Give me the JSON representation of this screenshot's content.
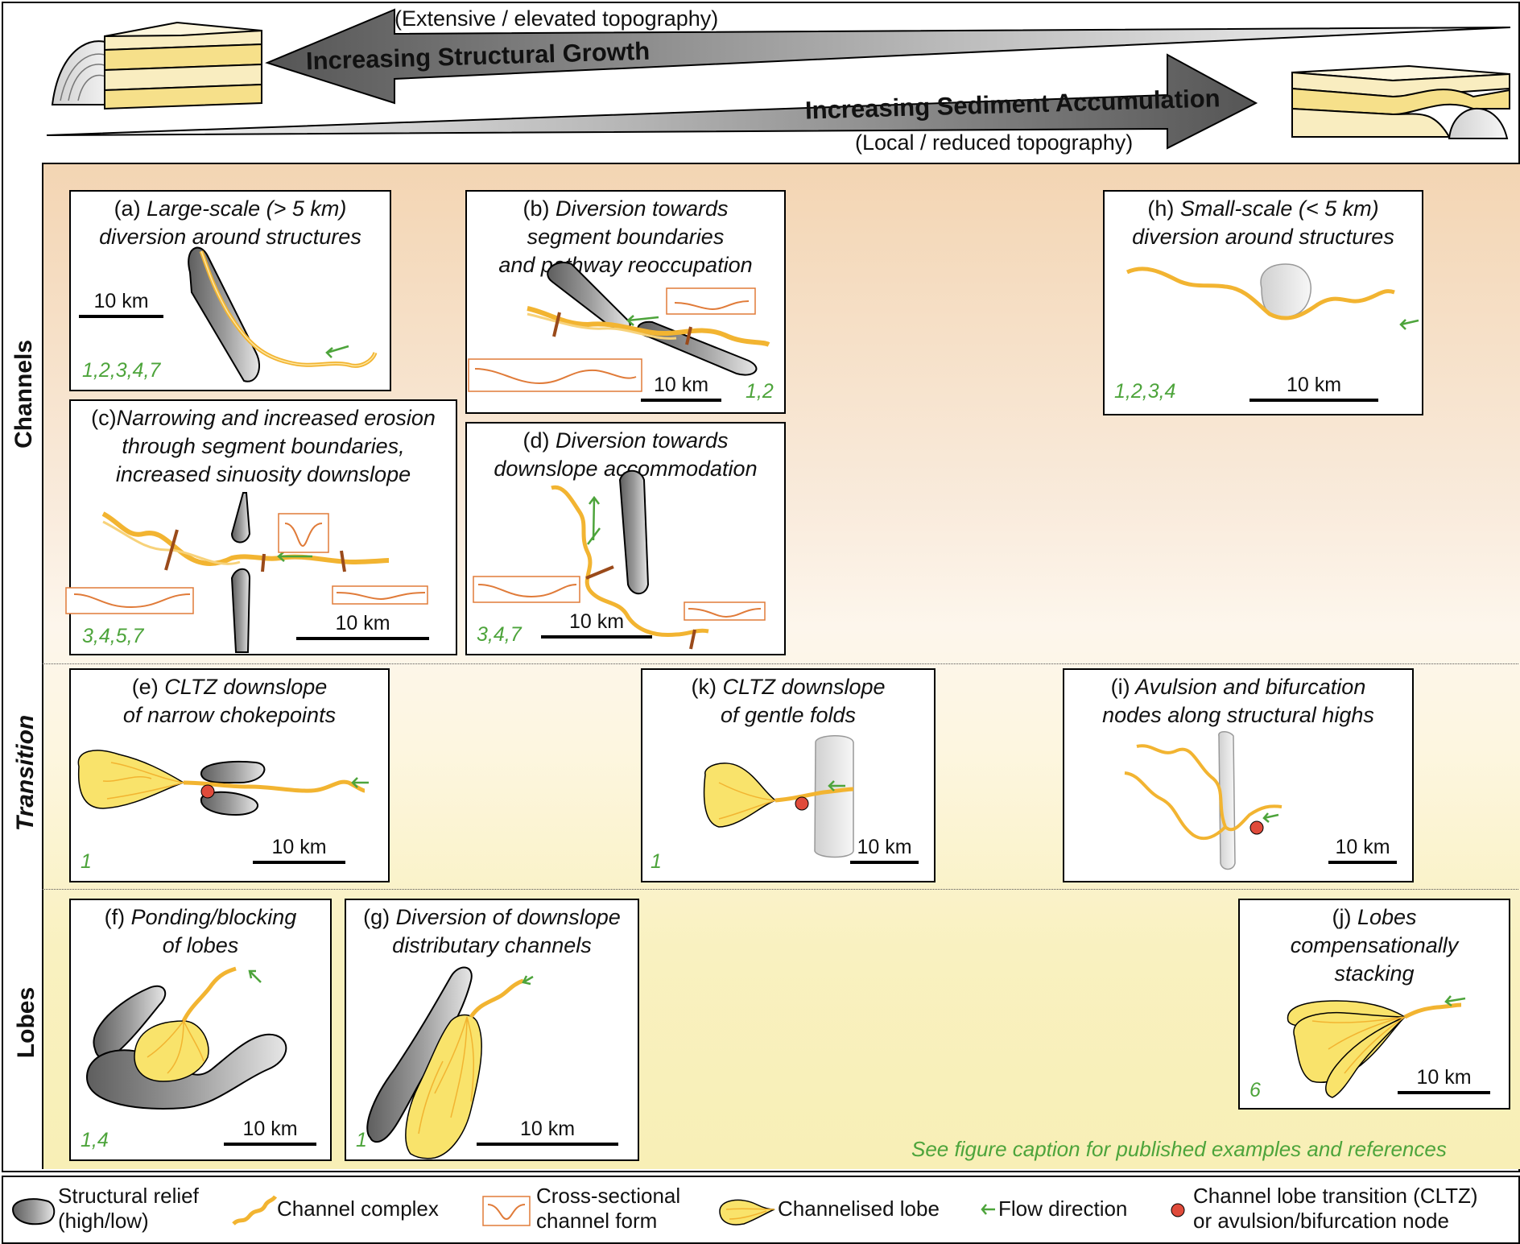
{
  "header": {
    "arrow_top_label": "Increasing Structural Growth",
    "arrow_top_caption": "(Extensive / elevated topography)",
    "arrow_bottom_label": "Increasing Sediment Accumulation",
    "arrow_bottom_caption": "(Local / reduced topography)"
  },
  "rows": {
    "channels": "Channels",
    "transition": "Transition",
    "lobes": "Lobes"
  },
  "panels": {
    "a": {
      "letter": "(a)",
      "title_1": "Large-scale (> 5 km)",
      "title_2": "diversion around structures",
      "scale": "10 km",
      "refs": "1,2,3,4,7"
    },
    "b": {
      "letter": "(b)",
      "title_1": "Diversion towards",
      "title_2": "segment boundaries",
      "title_3": "and pathway reoccupation",
      "scale": "10 km",
      "refs": "1,2"
    },
    "c": {
      "letter": "(c)",
      "title_1": "Narrowing and increased erosion",
      "title_2": "through segment boundaries,",
      "title_3": "increased sinuosity downslope",
      "scale": "10 km",
      "refs": "3,4,5,7"
    },
    "d": {
      "letter": "(d)",
      "title_1": "Diversion towards",
      "title_2": "downslope accommodation",
      "scale": "10 km",
      "refs": "3,4,7"
    },
    "h": {
      "letter": "(h)",
      "title_1": "Small-scale (< 5 km)",
      "title_2": "diversion around structures",
      "scale": "10 km",
      "refs": "1,2,3,4"
    },
    "e": {
      "letter": "(e)",
      "title_1": "CLTZ downslope",
      "title_2": "of narrow chokepoints",
      "scale": "10 km",
      "refs": "1"
    },
    "k": {
      "letter": "(k)",
      "title_1": "CLTZ downslope",
      "title_2": "of gentle folds",
      "scale": "10 km",
      "refs": "1"
    },
    "i": {
      "letter": "(i)",
      "title_1": "Avulsion and bifurcation",
      "title_2": "nodes along structural highs",
      "scale": "10 km",
      "refs": ""
    },
    "f": {
      "letter": "(f)",
      "title_1": "Ponding/blocking",
      "title_2": "of lobes",
      "scale": "10 km",
      "refs": "1,4"
    },
    "g": {
      "letter": "(g)",
      "title_1": "Diversion of downslope",
      "title_2": "distributary channels",
      "scale": "10 km",
      "refs": "1"
    },
    "j": {
      "letter": "(j)",
      "title_1": "Lobes",
      "title_2": "compensationally",
      "title_3": "stacking",
      "scale": "10 km",
      "refs": "6"
    }
  },
  "footnote": "See figure caption for published examples and references",
  "legend": {
    "structural_relief_1": "Structural relief",
    "structural_relief_2": "(high/low)",
    "channel_complex": "Channel complex",
    "cross_section_1": "Cross-sectional",
    "cross_section_2": "channel form",
    "channelised_lobe": "Channelised lobe",
    "flow_direction": "Flow direction",
    "cltz_1": "Channel lobe transition (CLTZ)",
    "cltz_2": "or avulsion/bifurcation node"
  },
  "colors": {
    "channel": "#f2b431",
    "lobe": "#f9e36b",
    "structure": "#8a8a8a",
    "cross_section": "#e07b39",
    "flow_arrow": "#4da43b",
    "node": "#e04b3b",
    "ref_text": "#4da43b"
  }
}
